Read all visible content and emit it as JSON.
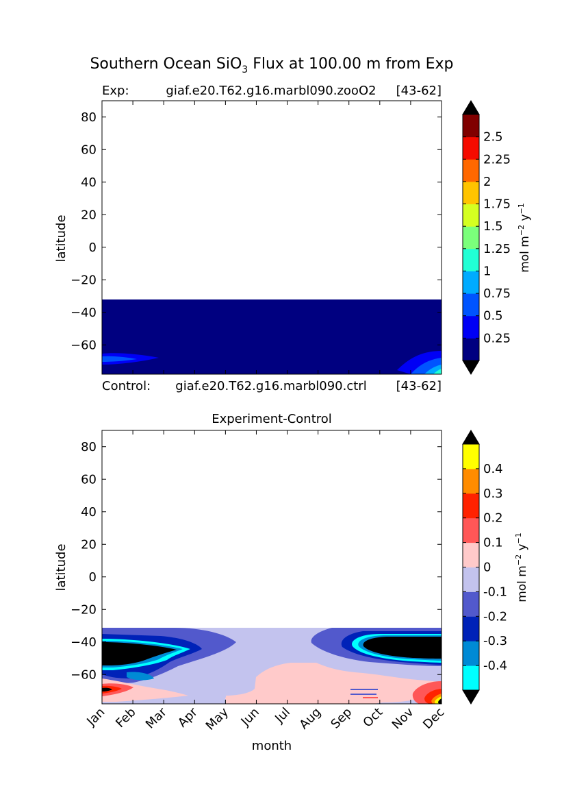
{
  "figure": {
    "title_main": "Southern Ocean SiO",
    "title_sub": "3",
    "title_rest": " Flux at 100.00 m from Exp"
  },
  "chart_data": [
    {
      "type": "heatmap",
      "panel": "experiment",
      "header_left": "Exp:",
      "header_center": "giaf.e20.T62.g16.marbl090.zooO2",
      "header_right": "[43-62]",
      "footer_left": "Control:",
      "footer_center": "giaf.e20.T62.g16.marbl090.ctrl",
      "footer_right": "[43-62]",
      "xlabel": "",
      "ylabel": "latitude",
      "yticks": [
        80,
        60,
        40,
        20,
        0,
        -20,
        -40,
        -60
      ],
      "ytick_labels": [
        "80",
        "60",
        "40",
        "20",
        "0",
        "−20",
        "−40",
        "−60"
      ],
      "xlim": [
        0,
        11
      ],
      "ylim": [
        -78,
        90
      ],
      "data_extent_lat": [
        -78,
        -33
      ],
      "background_level": "0-0.25",
      "features": [
        {
          "name": "jan-coastal-patch",
          "months": [
            0,
            1.8
          ],
          "lat": [
            -74,
            -68
          ],
          "value": 0.5
        },
        {
          "name": "dec-coastal-patch",
          "months": [
            9.7,
            11
          ],
          "lat": [
            -78,
            -66
          ],
          "value": 0.6
        }
      ],
      "colorbar": {
        "label": "mol m",
        "label_exp": "−2",
        "label_rest": " y",
        "label_exp2": "−1",
        "tick_labels": [
          "0.25",
          "0.5",
          "0.75",
          "1",
          "1.25",
          "1.5",
          "1.75",
          "2",
          "2.25",
          "2.5"
        ],
        "colors": [
          "#000080",
          "#0000f5",
          "#0054ff",
          "#00abff",
          "#21ffd5",
          "#7bff7b",
          "#d5ff21",
          "#ffc400",
          "#ff6800",
          "#f50b00",
          "#800000"
        ],
        "under_color": "#000000",
        "over_color": "#000000"
      }
    },
    {
      "type": "heatmap",
      "panel": "difference",
      "title": "Experiment-Control",
      "xlabel": "month",
      "ylabel": "latitude",
      "categories": [
        "Jan",
        "Feb",
        "Mar",
        "Apr",
        "May",
        "Jun",
        "Jul",
        "Aug",
        "Sep",
        "Oct",
        "Nov",
        "Dec"
      ],
      "yticks": [
        80,
        60,
        40,
        20,
        0,
        -20,
        -40,
        -60
      ],
      "ytick_labels": [
        "80",
        "60",
        "40",
        "20",
        "0",
        "−20",
        "−40",
        "−60"
      ],
      "xlim": [
        0,
        11
      ],
      "ylim": [
        -78,
        90
      ],
      "data_extent_lat": [
        -78,
        -33
      ],
      "background_level": "-0.1-0",
      "features": [
        {
          "name": "west-negative-band",
          "months": [
            0,
            4.5
          ],
          "lat": [
            -65,
            -35
          ],
          "value": -0.25
        },
        {
          "name": "west-strong-negative-core",
          "months": [
            0,
            2.5
          ],
          "lat": [
            -57,
            -43
          ],
          "value": -0.6
        },
        {
          "name": "east-negative-band",
          "months": [
            6.8,
            11
          ],
          "lat": [
            -62,
            -35
          ],
          "value": -0.25
        },
        {
          "name": "east-strong-negative-core",
          "months": [
            8.4,
            11
          ],
          "lat": [
            -56,
            -38
          ],
          "value": -0.6
        },
        {
          "name": "positive-coastal-region",
          "months": [
            5,
            10.3
          ],
          "lat": [
            -78,
            -55
          ],
          "value": 0.05
        },
        {
          "name": "jan-positive-patch",
          "months": [
            0,
            0.8
          ],
          "lat": [
            -75,
            -68
          ],
          "value": 0.25
        },
        {
          "name": "dec-positive-patch",
          "months": [
            10.3,
            11
          ],
          "lat": [
            -78,
            -69
          ],
          "value": 0.3
        }
      ],
      "colorbar": {
        "label": "mol m",
        "label_exp": "−2",
        "label_rest": " y",
        "label_exp2": "−1",
        "tick_labels": [
          "-0.4",
          "-0.3",
          "-0.2",
          "-0.1",
          "0",
          "0.1",
          "0.2",
          "0.3",
          "0.4"
        ],
        "colors": [
          "#00ffff",
          "#008ad5",
          "#0022b8",
          "#5259cc",
          "#c3c3ee",
          "#ffcaca",
          "#ff5757",
          "#ff2200",
          "#ff8c00",
          "#ffff00"
        ],
        "under_color": "#000000",
        "over_color": "#000000"
      }
    }
  ]
}
